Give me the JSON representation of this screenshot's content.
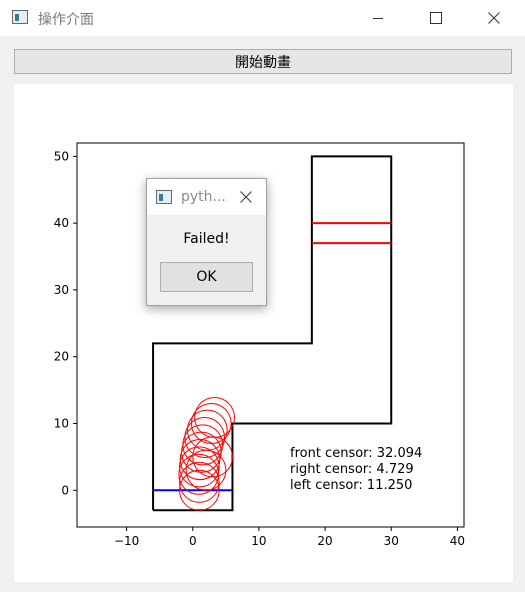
{
  "window": {
    "title": "操作介面",
    "icon": "app-window-icon"
  },
  "toolbar": {
    "start_label": "開始動畫"
  },
  "plot": {
    "x_ticks": [
      "−10",
      "0",
      "10",
      "20",
      "30",
      "40"
    ],
    "y_ticks": [
      "0",
      "10",
      "20",
      "30",
      "40",
      "50"
    ],
    "x_tick_values": [
      -10,
      0,
      10,
      20,
      30,
      40
    ],
    "y_tick_values": [
      0,
      10,
      20,
      30,
      40,
      50
    ],
    "xlim": [
      -17.5,
      41.0
    ],
    "ylim": [
      -5.5,
      52.0
    ],
    "grid": false,
    "track_outline": [
      [
        -6,
        -3
      ],
      [
        -6,
        22
      ],
      [
        18,
        22
      ],
      [
        18,
        50
      ],
      [
        30,
        50
      ],
      [
        30,
        10
      ],
      [
        6,
        10
      ],
      [
        6,
        -3
      ],
      [
        -6,
        -3
      ]
    ],
    "start_line": [
      [
        -6,
        0
      ],
      [
        6,
        0
      ]
    ],
    "finish_lines": [
      [
        [
          18,
          40
        ],
        [
          30,
          40
        ]
      ],
      [
        [
          18,
          37
        ],
        [
          30,
          37
        ]
      ]
    ],
    "car_radius": 3,
    "car_path": [
      [
        1.0,
        0.0
      ],
      [
        1.0,
        1.2
      ],
      [
        0.9,
        2.4
      ],
      [
        1.0,
        3.5
      ],
      [
        1.1,
        4.6
      ],
      [
        1.3,
        5.7
      ],
      [
        1.5,
        6.8
      ],
      [
        1.8,
        7.9
      ],
      [
        2.2,
        9.0
      ],
      [
        2.8,
        10.0
      ],
      [
        3.3,
        10.9
      ],
      [
        3.0,
        5.0
      ],
      [
        2.0,
        3.0
      ]
    ],
    "colors": {
      "track": "#000000",
      "start_line": "#0000ff",
      "finish_lines": "#ff0000",
      "car": "#ff0000"
    }
  },
  "sensors": {
    "front": "front censor: 32.094",
    "right": "right censor: 4.729",
    "left": "left censor: 11.250"
  },
  "dialog": {
    "title": "pyth...",
    "message": "Failed!",
    "ok_label": "OK"
  }
}
